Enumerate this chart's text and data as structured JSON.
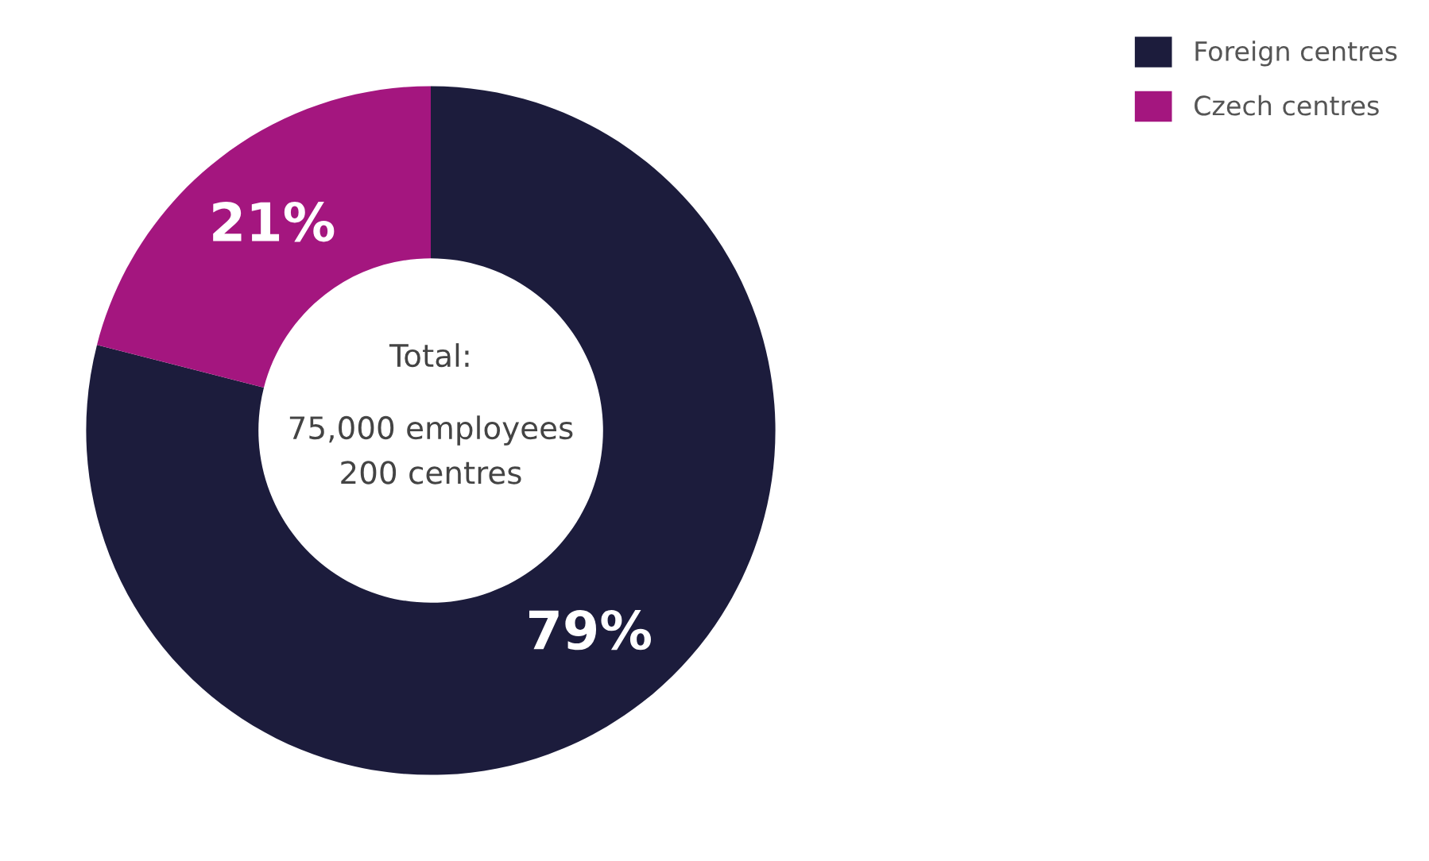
{
  "chart_data": {
    "type": "donut",
    "categories": [
      "Foreign centres",
      "Czech centres"
    ],
    "values": [
      79,
      21
    ],
    "colors": [
      "#1c1c3c",
      "#a4167f"
    ],
    "value_labels": [
      "79%",
      "21%"
    ],
    "annotations": [
      "Total:",
      "75,000 employees",
      "200 centres"
    ],
    "legend": "top right"
  }
}
